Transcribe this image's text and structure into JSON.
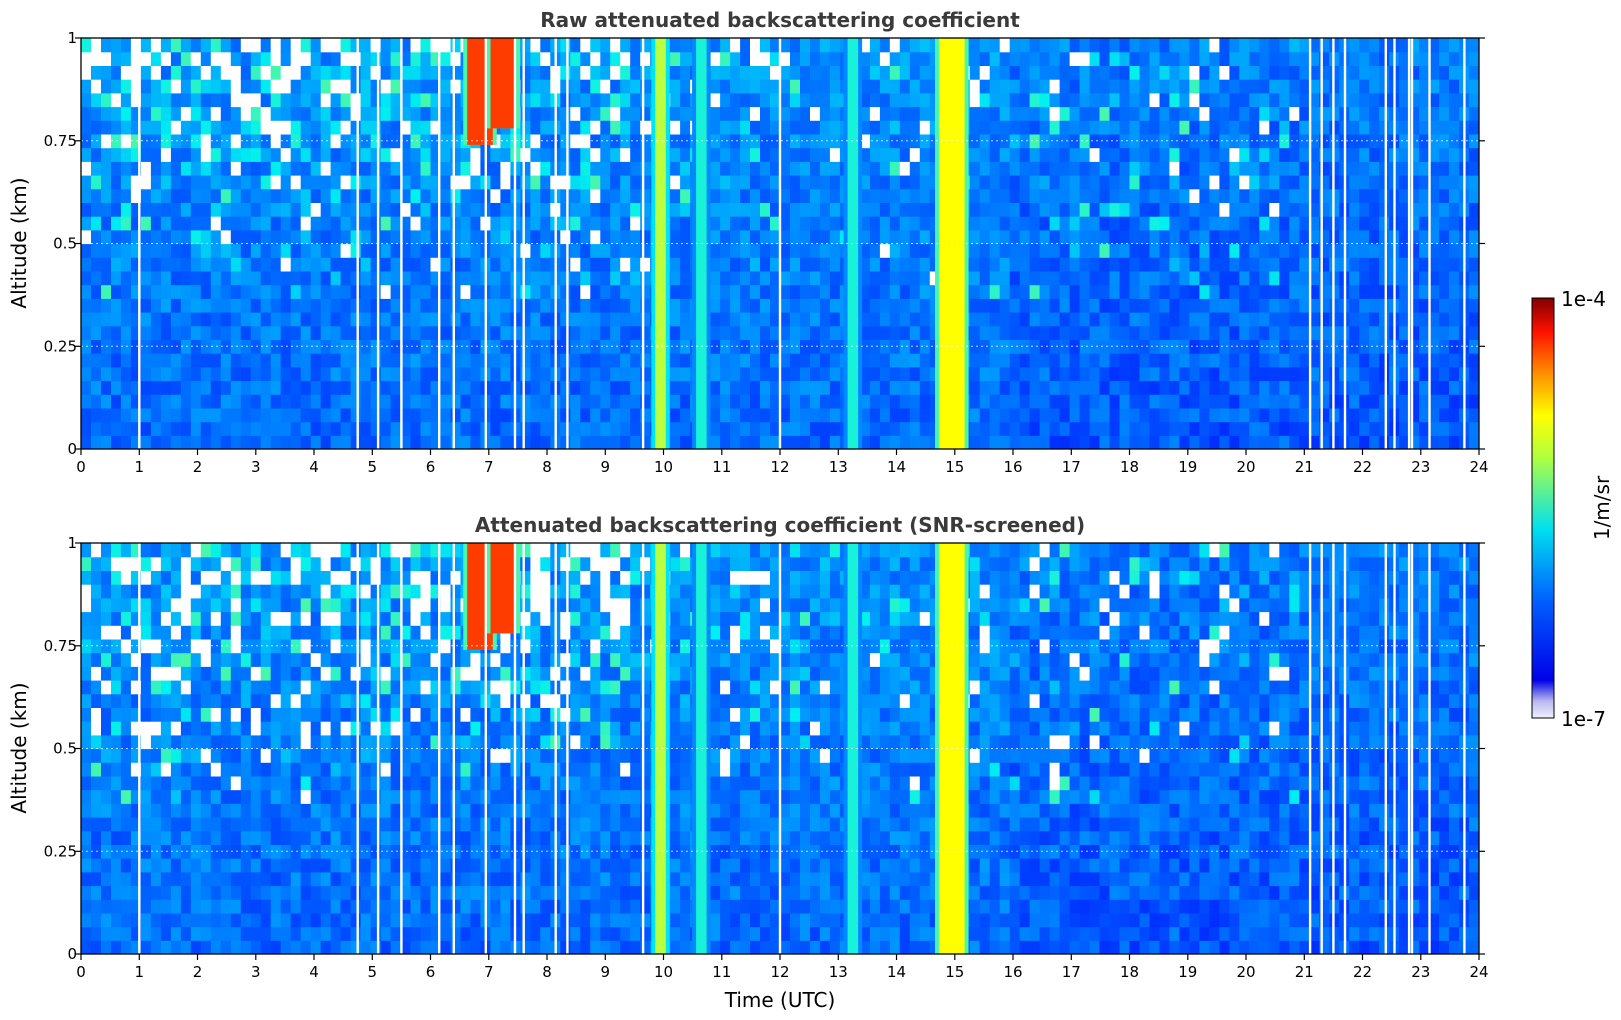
{
  "chart_data": [
    {
      "type": "heatmap",
      "title": "Raw attenuated backscattering coefficient",
      "xlabel": "",
      "ylabel": "Altitude (km)",
      "xlim": [
        0,
        24
      ],
      "ylim": [
        0,
        1
      ],
      "x_ticks": [
        "0",
        "1",
        "2",
        "3",
        "4",
        "5",
        "6",
        "7",
        "8",
        "9",
        "10",
        "11",
        "12",
        "13",
        "14",
        "15",
        "16",
        "17",
        "18",
        "19",
        "20",
        "21",
        "22",
        "23",
        "24"
      ],
      "y_ticks": [
        "0",
        "0.25",
        "0.5",
        "0.75",
        "1"
      ],
      "grid": true,
      "variant": "raw",
      "plumes": [
        {
          "time": 6.85,
          "alt_bottom": 0.74,
          "intensity": "high"
        },
        {
          "time": 7.25,
          "alt_bottom": 0.78,
          "intensity": "high"
        },
        {
          "time": 9.95,
          "alt_bottom": 0.0,
          "intensity": "medium"
        },
        {
          "time": 10.65,
          "alt_bottom": 0.0,
          "intensity": "low"
        },
        {
          "time": 13.25,
          "alt_bottom": 0.0,
          "intensity": "low"
        },
        {
          "time": 14.95,
          "alt_bottom": 0.0,
          "intensity": "high"
        }
      ]
    },
    {
      "type": "heatmap",
      "title": "Attenuated backscattering coefficient (SNR-screened)",
      "xlabel": "Time (UTC)",
      "ylabel": "Altitude (km)",
      "xlim": [
        0,
        24
      ],
      "ylim": [
        0,
        1
      ],
      "x_ticks": [
        "0",
        "1",
        "2",
        "3",
        "4",
        "5",
        "6",
        "7",
        "8",
        "9",
        "10",
        "11",
        "12",
        "13",
        "14",
        "15",
        "16",
        "17",
        "18",
        "19",
        "20",
        "21",
        "22",
        "23",
        "24"
      ],
      "y_ticks": [
        "0",
        "0.25",
        "0.5",
        "0.75",
        "1"
      ],
      "grid": true,
      "variant": "screened",
      "plumes": [
        {
          "time": 6.85,
          "alt_bottom": 0.74,
          "intensity": "high"
        },
        {
          "time": 7.25,
          "alt_bottom": 0.78,
          "intensity": "high"
        },
        {
          "time": 9.95,
          "alt_bottom": 0.0,
          "intensity": "medium"
        },
        {
          "time": 10.65,
          "alt_bottom": 0.0,
          "intensity": "low"
        },
        {
          "time": 13.25,
          "alt_bottom": 0.0,
          "intensity": "low"
        },
        {
          "time": 14.95,
          "alt_bottom": 0.0,
          "intensity": "high"
        }
      ]
    }
  ],
  "colorbar": {
    "max_label": "1e-4",
    "min_label": "1e-7",
    "unit": "1/m/sr",
    "scale": "log",
    "colormap": "jet"
  },
  "data_gaps_utc": [
    1.0,
    4.75,
    5.1,
    5.5,
    6.15,
    6.4,
    6.95,
    7.45,
    7.6,
    8.15,
    8.35,
    9.65,
    12.0,
    21.1,
    21.3,
    21.5,
    21.7,
    22.4,
    22.55,
    22.8,
    22.85,
    23.15,
    23.75
  ],
  "colors": {
    "background_fill": "#0a2fe6",
    "plume_core": "#f0e000",
    "title_text": "#3a3a3a"
  }
}
